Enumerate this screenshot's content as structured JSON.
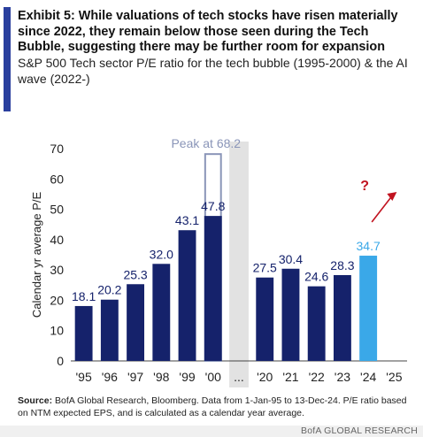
{
  "title": "Exhibit 5: While valuations of tech stocks have risen materially since 2022, they remain below those seen during the Tech Bubble, suggesting there may be further room for expansion",
  "subtitle": "S&P 500 Tech sector P/E ratio for the tech bubble (1995-2000) & the AI wave (2022-)",
  "source_label": "Source:",
  "source_text": "BofA Global Research, Bloomberg. Data from 1-Jan-95 to 13-Dec-24. P/E ratio based on NTM expected EPS, and is calculated as a calendar year average.",
  "brand": "BofA GLOBAL RESEARCH",
  "colors": {
    "bar": "#15226b",
    "highlight": "#3aa8e8",
    "peak_outline": "#8a95b8",
    "arrow": "#c1121f",
    "gap": "#e2e2e2"
  },
  "chart_data": {
    "type": "bar",
    "ylabel": "Calendar yr average P/E",
    "ylim": [
      0,
      70
    ],
    "yticks": [
      "0",
      "10",
      "20",
      "30",
      "40",
      "50",
      "60",
      "70"
    ],
    "categories": [
      "'95",
      "'96",
      "'97",
      "'98",
      "'99",
      "'00",
      "...",
      "'20",
      "'21",
      "'22",
      "'23",
      "'24",
      "'25"
    ],
    "values": [
      18.1,
      20.2,
      25.3,
      32.0,
      43.1,
      47.8,
      null,
      27.5,
      30.4,
      24.6,
      28.3,
      34.7,
      null
    ],
    "labels": [
      "18.1",
      "20.2",
      "25.3",
      "32.0",
      "43.1",
      "47.8",
      "",
      "27.5",
      "30.4",
      "24.6",
      "28.3",
      "34.7",
      ""
    ],
    "highlight_category": "'24",
    "peak": {
      "category": "'00",
      "value": 68.2,
      "label": "Peak at 68.2"
    },
    "annotation": "?",
    "grid": false
  }
}
